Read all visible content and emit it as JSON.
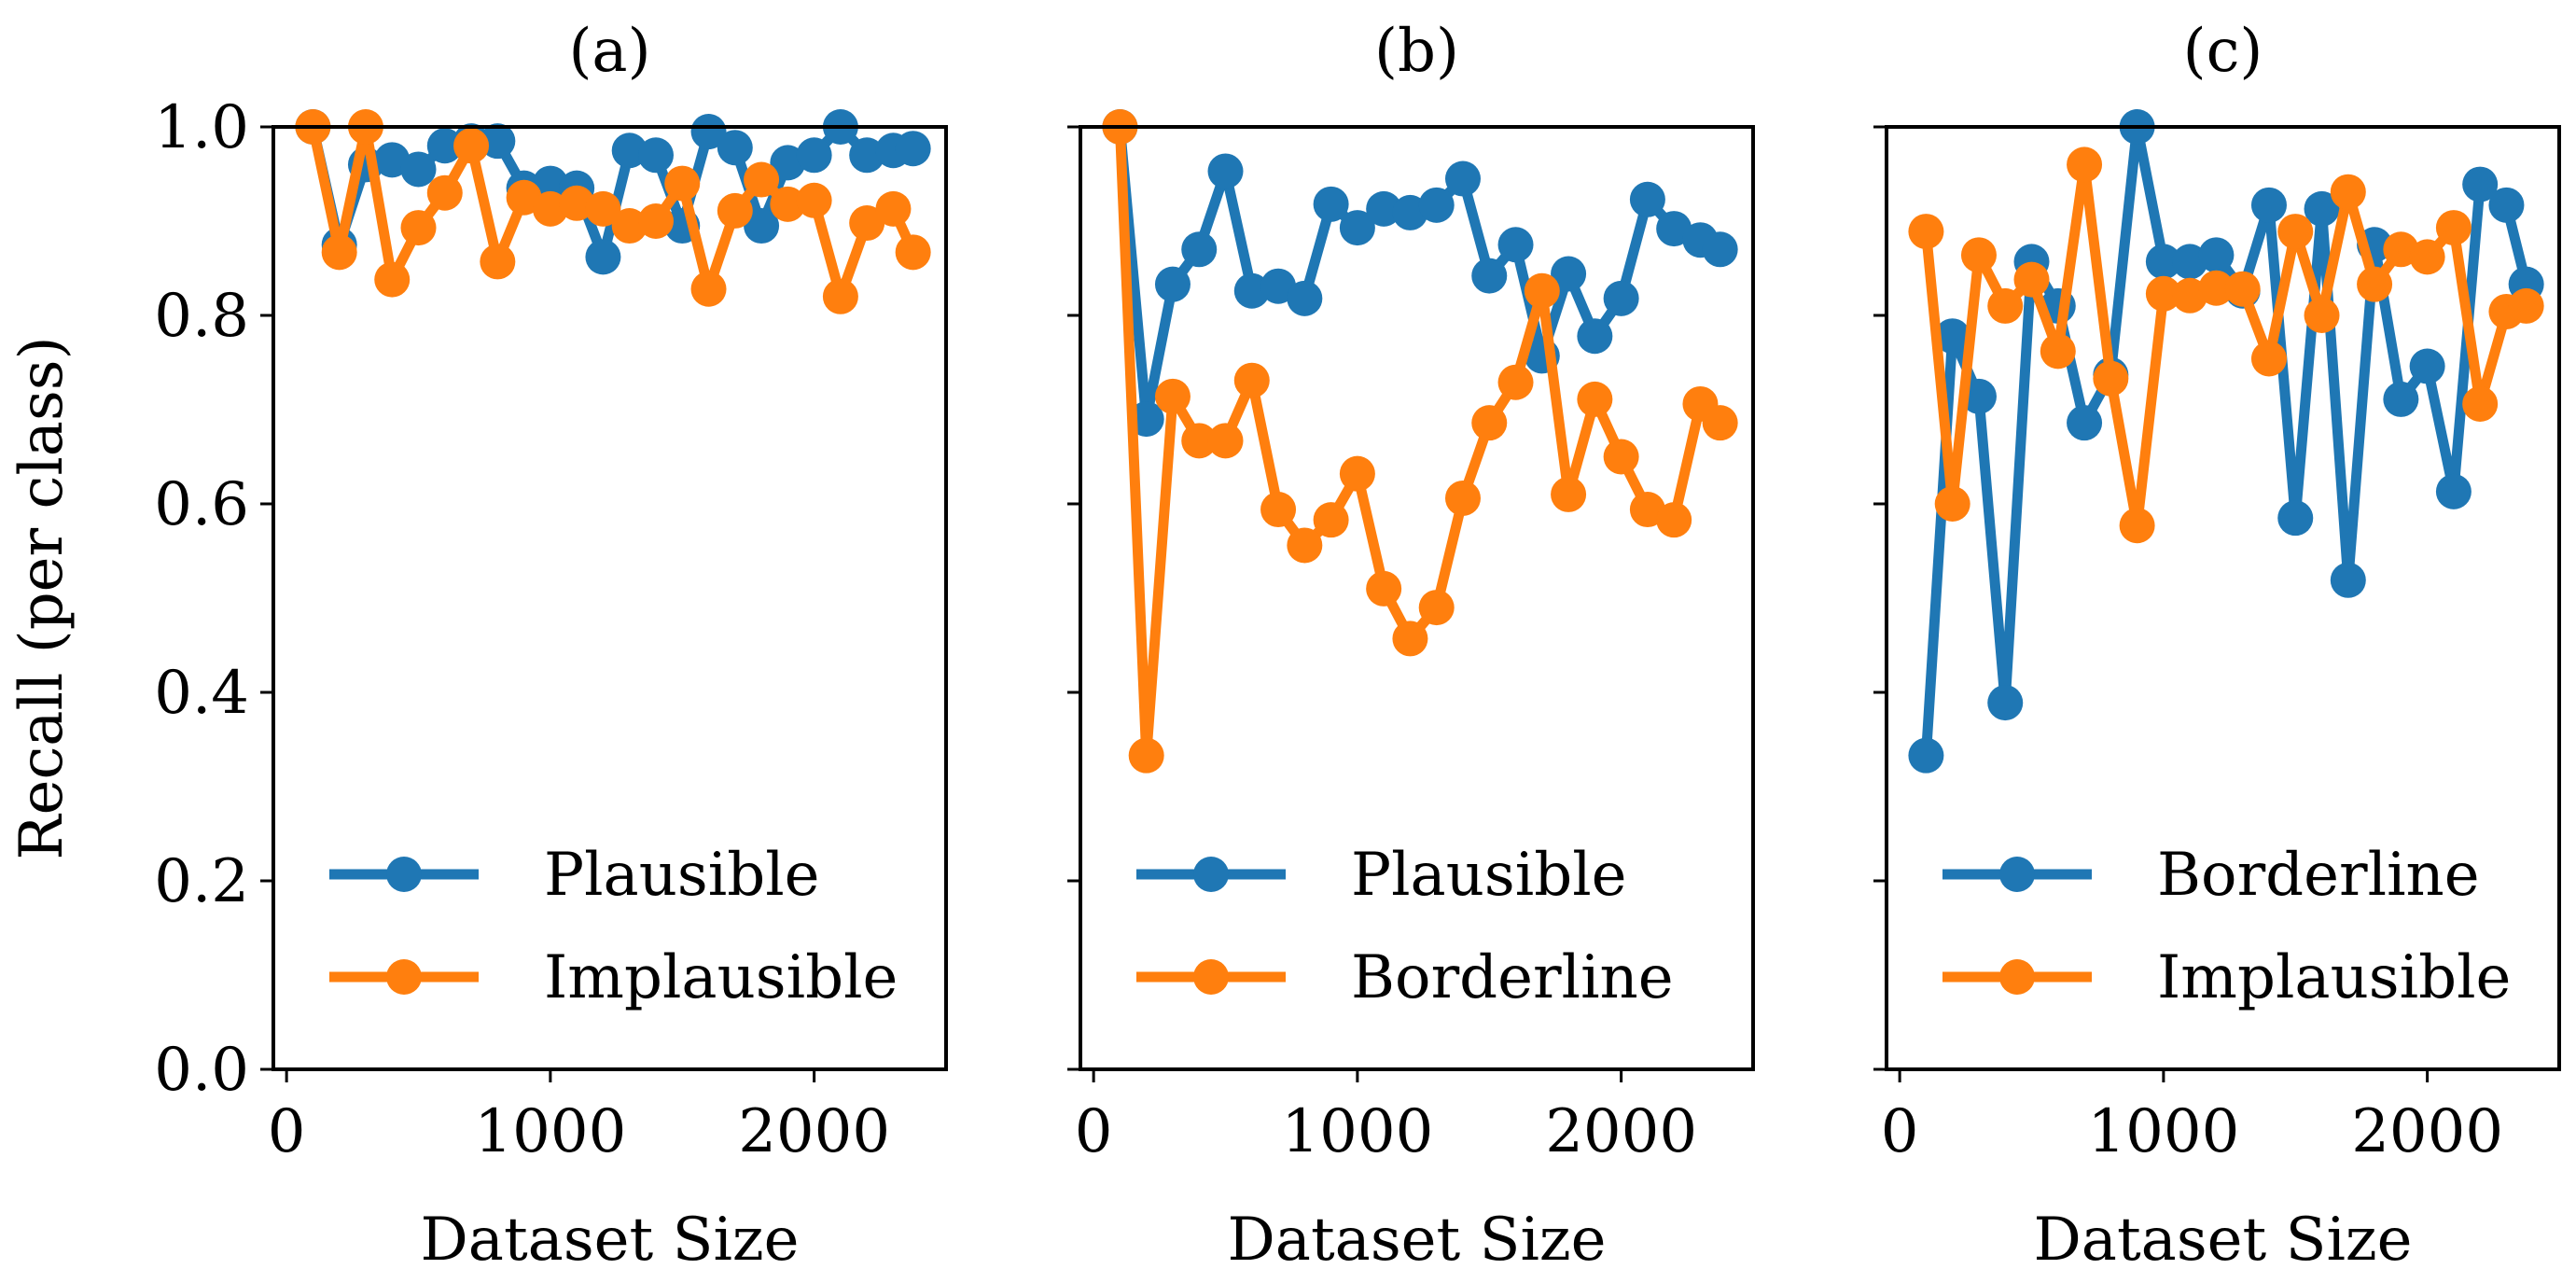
{
  "chart_data": [
    {
      "type": "line",
      "title": "(a)",
      "xlabel": "Dataset Size",
      "ylabel": "Recall (per class)",
      "xlim": [
        -50,
        2500
      ],
      "ylim": [
        0.0,
        1.0
      ],
      "xticks": [
        0,
        1000,
        2000
      ],
      "yticks": [
        0.0,
        0.2,
        0.4,
        0.6,
        0.8,
        1.0
      ],
      "xtick_labels": [
        "0",
        "1000",
        "2000"
      ],
      "ytick_labels": [
        "0.0",
        "0.2",
        "0.4",
        "0.6",
        "0.8",
        "1.0"
      ],
      "legend_position": "lower-right",
      "x": [
        100,
        200,
        300,
        400,
        500,
        600,
        700,
        800,
        900,
        1000,
        1100,
        1200,
        1300,
        1400,
        1500,
        1600,
        1700,
        1800,
        1900,
        2000,
        2100,
        2200,
        2300,
        2375
      ],
      "series": [
        {
          "name": "Plausible",
          "color": "#1f77b4",
          "values": [
            1.0,
            0.875,
            0.96,
            0.965,
            0.955,
            0.98,
            0.985,
            0.985,
            0.935,
            0.94,
            0.935,
            0.862,
            0.975,
            0.97,
            0.895,
            0.995,
            0.978,
            0.895,
            0.962,
            0.97,
            1.0,
            0.97,
            0.975,
            0.977
          ]
        },
        {
          "name": "Implausible",
          "color": "#ff7f0e",
          "values": [
            1.0,
            0.867,
            1.0,
            0.838,
            0.893,
            0.93,
            0.98,
            0.857,
            0.925,
            0.913,
            0.919,
            0.913,
            0.895,
            0.9,
            0.94,
            0.828,
            0.911,
            0.944,
            0.918,
            0.922,
            0.82,
            0.898,
            0.913,
            0.867
          ]
        }
      ]
    },
    {
      "type": "line",
      "title": "(b)",
      "xlabel": "Dataset Size",
      "xlim": [
        -50,
        2500
      ],
      "ylim": [
        0.0,
        1.0
      ],
      "xticks": [
        0,
        1000,
        2000
      ],
      "xtick_labels": [
        "0",
        "1000",
        "2000"
      ],
      "legend_position": "lower-right",
      "x": [
        100,
        200,
        300,
        400,
        500,
        600,
        700,
        800,
        900,
        1000,
        1100,
        1200,
        1300,
        1400,
        1500,
        1600,
        1700,
        1800,
        1900,
        2000,
        2100,
        2200,
        2300,
        2375
      ],
      "series": [
        {
          "name": "Plausible",
          "color": "#1f77b4",
          "values": [
            1.0,
            0.69,
            0.833,
            0.87,
            0.953,
            0.826,
            0.831,
            0.818,
            0.918,
            0.893,
            0.913,
            0.909,
            0.917,
            0.945,
            0.842,
            0.875,
            0.757,
            0.844,
            0.778,
            0.818,
            0.923,
            0.892,
            0.88,
            0.87
          ]
        },
        {
          "name": "Borderline",
          "color": "#ff7f0e",
          "values": [
            1.0,
            0.333,
            0.714,
            0.667,
            0.667,
            0.731,
            0.594,
            0.556,
            0.583,
            0.632,
            0.51,
            0.457,
            0.49,
            0.606,
            0.686,
            0.729,
            0.826,
            0.61,
            0.711,
            0.65,
            0.594,
            0.583,
            0.706,
            0.686
          ]
        }
      ]
    },
    {
      "type": "line",
      "title": "(c)",
      "xlabel": "Dataset Size",
      "xlim": [
        -50,
        2500
      ],
      "ylim": [
        0.0,
        1.0
      ],
      "xticks": [
        0,
        1000,
        2000
      ],
      "xtick_labels": [
        "0",
        "1000",
        "2000"
      ],
      "legend_position": "lower-right",
      "x": [
        100,
        200,
        300,
        400,
        500,
        600,
        700,
        800,
        900,
        1000,
        1100,
        1200,
        1300,
        1400,
        1500,
        1600,
        1700,
        1800,
        1900,
        2000,
        2100,
        2200,
        2300,
        2375
      ],
      "series": [
        {
          "name": "Borderline",
          "color": "#1f77b4",
          "values": [
            0.333,
            0.778,
            0.714,
            0.389,
            0.857,
            0.81,
            0.686,
            0.737,
            1.0,
            0.857,
            0.857,
            0.864,
            0.826,
            0.917,
            0.585,
            0.913,
            0.519,
            0.875,
            0.711,
            0.746,
            0.613,
            0.939,
            0.917,
            0.833
          ]
        },
        {
          "name": "Implausible",
          "color": "#ff7f0e",
          "values": [
            0.889,
            0.6,
            0.864,
            0.81,
            0.838,
            0.762,
            0.96,
            0.733,
            0.577,
            0.823,
            0.821,
            0.829,
            0.828,
            0.754,
            0.889,
            0.8,
            0.931,
            0.833,
            0.87,
            0.862,
            0.893,
            0.706,
            0.804,
            0.81
          ]
        }
      ]
    }
  ]
}
